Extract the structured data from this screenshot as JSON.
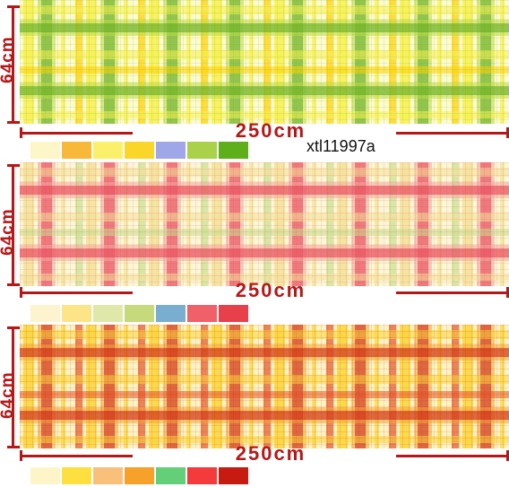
{
  "product_code": "xtl11997a",
  "panels": [
    {
      "id": "green",
      "height_label": "64cm",
      "width_label": "250cm",
      "base": "#fdfbd0",
      "band_light": "#f8f050",
      "band_mid": "#bcd848",
      "band_dark": "#5aa820",
      "accent": "#ffd000",
      "swatches": [
        "#fdf6c9",
        "#f8b93a",
        "#fbf06a",
        "#fad62a",
        "#a0a7e8",
        "#a9d14a",
        "#5faf1c"
      ]
    },
    {
      "id": "red",
      "height_label": "64cm",
      "width_label": "250cm",
      "base": "#fcf7d6",
      "band_light": "#f3e29a",
      "band_mid": "#f2a6a0",
      "band_dark": "#e8394c",
      "accent": "#c7df8f",
      "swatches": [
        "#fdf3cf",
        "#fce487",
        "#dfe8a9",
        "#c6d97b",
        "#7aaed1",
        "#f06068",
        "#e8404b"
      ]
    },
    {
      "id": "orange",
      "height_label": "64cm",
      "width_label": "250cm",
      "base": "#fdf3c4",
      "band_light": "#fbd53c",
      "band_mid": "#f4a23a",
      "band_dark": "#c81c12",
      "accent": "#e3542a",
      "swatches": [
        "#fdf4c8",
        "#fde040",
        "#f8c07a",
        "#f5a12a",
        "#63cf79",
        "#f33b3b",
        "#c71b12"
      ]
    }
  ]
}
